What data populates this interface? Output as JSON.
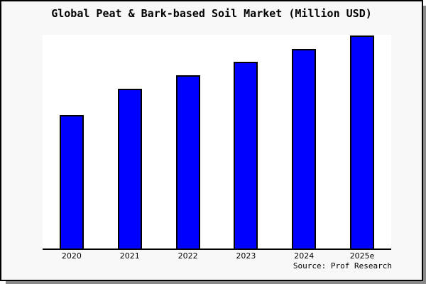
{
  "window": {
    "background": "#f8f8f8",
    "border_color": "#000000",
    "shadow_color": "#8a8a8a"
  },
  "header": {
    "title": "Global Peat & Bark-based Soil Market (Million USD)"
  },
  "footer": {
    "source": "Source: Prof Research"
  },
  "chart_data": {
    "type": "bar",
    "title": "Global Peat & Bark-based Soil Market (Million USD)",
    "categories": [
      "2020",
      "2021",
      "2022",
      "2023",
      "2024",
      "2025e"
    ],
    "values": [
      188,
      225,
      244,
      263,
      281,
      300
    ],
    "units": "relative height; y-axis has no visible scale or tick labels",
    "ylim": [
      0,
      301
    ],
    "xlabel": "",
    "ylabel": "",
    "grid": false,
    "legend": false,
    "bar_fill": "#0000ff",
    "bar_border": "#000000",
    "plot_background": "#ffffff",
    "source": "Source: Prof Research"
  }
}
